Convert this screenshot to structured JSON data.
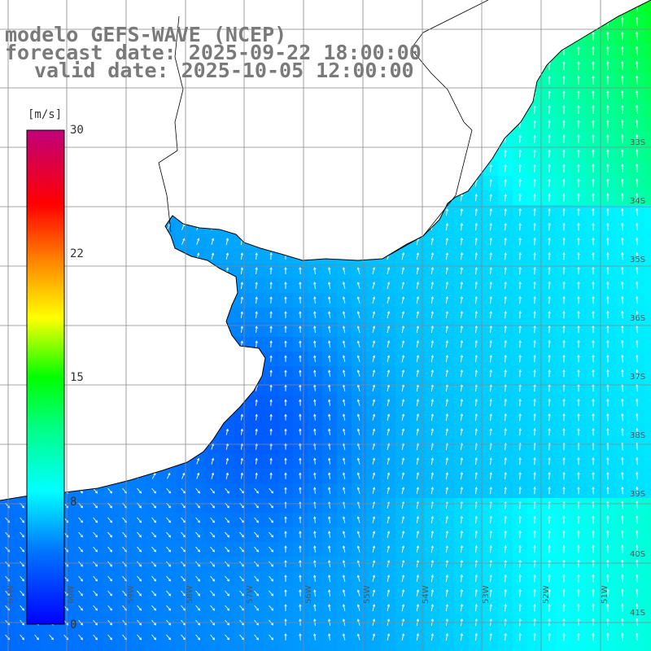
{
  "title_lines": [
    "modelo GEFS-WAVE (NCEP)",
    "forecast date: 2025-09-22 18:00:00",
    "valid date: 2025-10-05 12:00:00"
  ],
  "colorbar": {
    "unit": "[m/s]",
    "ticks": [
      "30",
      "22",
      "15",
      "8",
      "0"
    ],
    "tick_values": [
      30,
      22,
      15,
      8,
      0
    ],
    "min": 0,
    "max": 30,
    "colors": [
      "#0000ff",
      "#00aaff",
      "#00ffff",
      "#00ff80",
      "#00ff00",
      "#ffff00",
      "#ff8000",
      "#ff0000",
      "#c0007a"
    ]
  },
  "map": {
    "land_color": "#ffffff",
    "grid": true,
    "lat_labels": [
      "33S",
      "34S",
      "35S",
      "36S",
      "37S",
      "38S",
      "39S",
      "40S",
      "41S"
    ],
    "lon_labels": [
      "61W",
      "60W",
      "59W",
      "58W",
      "57W",
      "56W",
      "55W",
      "54W",
      "53W",
      "52W",
      "51W"
    ]
  }
}
